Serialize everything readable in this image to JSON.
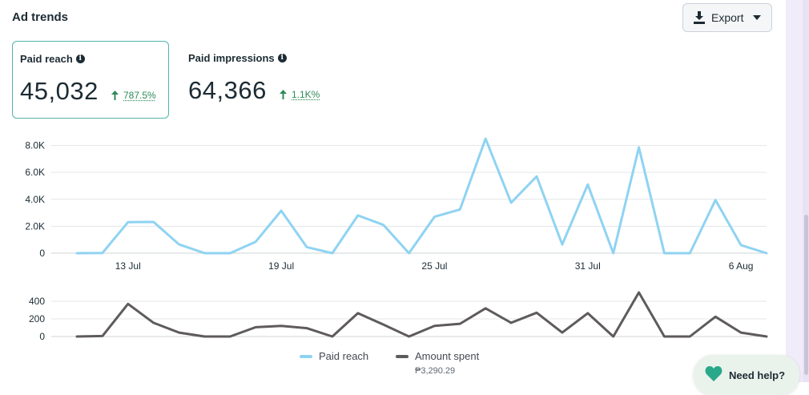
{
  "header": {
    "title": "Ad trends",
    "export_label": "Export"
  },
  "metrics": [
    {
      "label": "Paid reach",
      "value": "45,032",
      "change": "787.5%"
    },
    {
      "label": "Paid impressions",
      "value": "64,366",
      "change": "1.1K%"
    }
  ],
  "legend": {
    "items": [
      {
        "name": "Paid reach",
        "color": "#8fd3f2"
      },
      {
        "name": "Amount spent",
        "color": "#5f5b5b"
      }
    ],
    "amount_total": "₱3,290.29"
  },
  "help": {
    "label": "Need help?"
  },
  "chart_data": [
    {
      "type": "line",
      "title": "",
      "series": [
        {
          "name": "Paid reach",
          "color": "#8fd3f2",
          "values": [
            0,
            20,
            2300,
            2320,
            650,
            0,
            0,
            850,
            3150,
            450,
            0,
            2800,
            2100,
            0,
            2700,
            3250,
            8500,
            3750,
            5700,
            650,
            5100,
            0,
            7850,
            0,
            0,
            3950,
            600,
            0
          ]
        }
      ],
      "x_tick_labels": [
        "13 Jul",
        "19 Jul",
        "25 Jul",
        "31 Jul",
        "6 Aug"
      ],
      "x_tick_index": [
        2,
        8,
        14,
        20,
        26
      ],
      "y_ticks": [
        0,
        2000,
        4000,
        6000,
        8000
      ],
      "y_tick_labels": [
        "0",
        "2.0K",
        "4.0K",
        "6.0K",
        "8.0K"
      ],
      "ylim": [
        0,
        8000
      ],
      "grid": true
    },
    {
      "type": "line",
      "title": "",
      "series": [
        {
          "name": "Amount spent",
          "color": "#5f5b5b",
          "values": [
            0,
            5,
            370,
            155,
            45,
            0,
            0,
            105,
            120,
            95,
            0,
            265,
            135,
            0,
            120,
            145,
            320,
            155,
            270,
            45,
            265,
            0,
            500,
            0,
            0,
            225,
            45,
            0
          ]
        }
      ],
      "y_ticks": [
        0,
        200,
        400
      ],
      "y_tick_labels": [
        "0",
        "200",
        "400"
      ],
      "ylim": [
        0,
        400
      ],
      "grid": true
    }
  ]
}
